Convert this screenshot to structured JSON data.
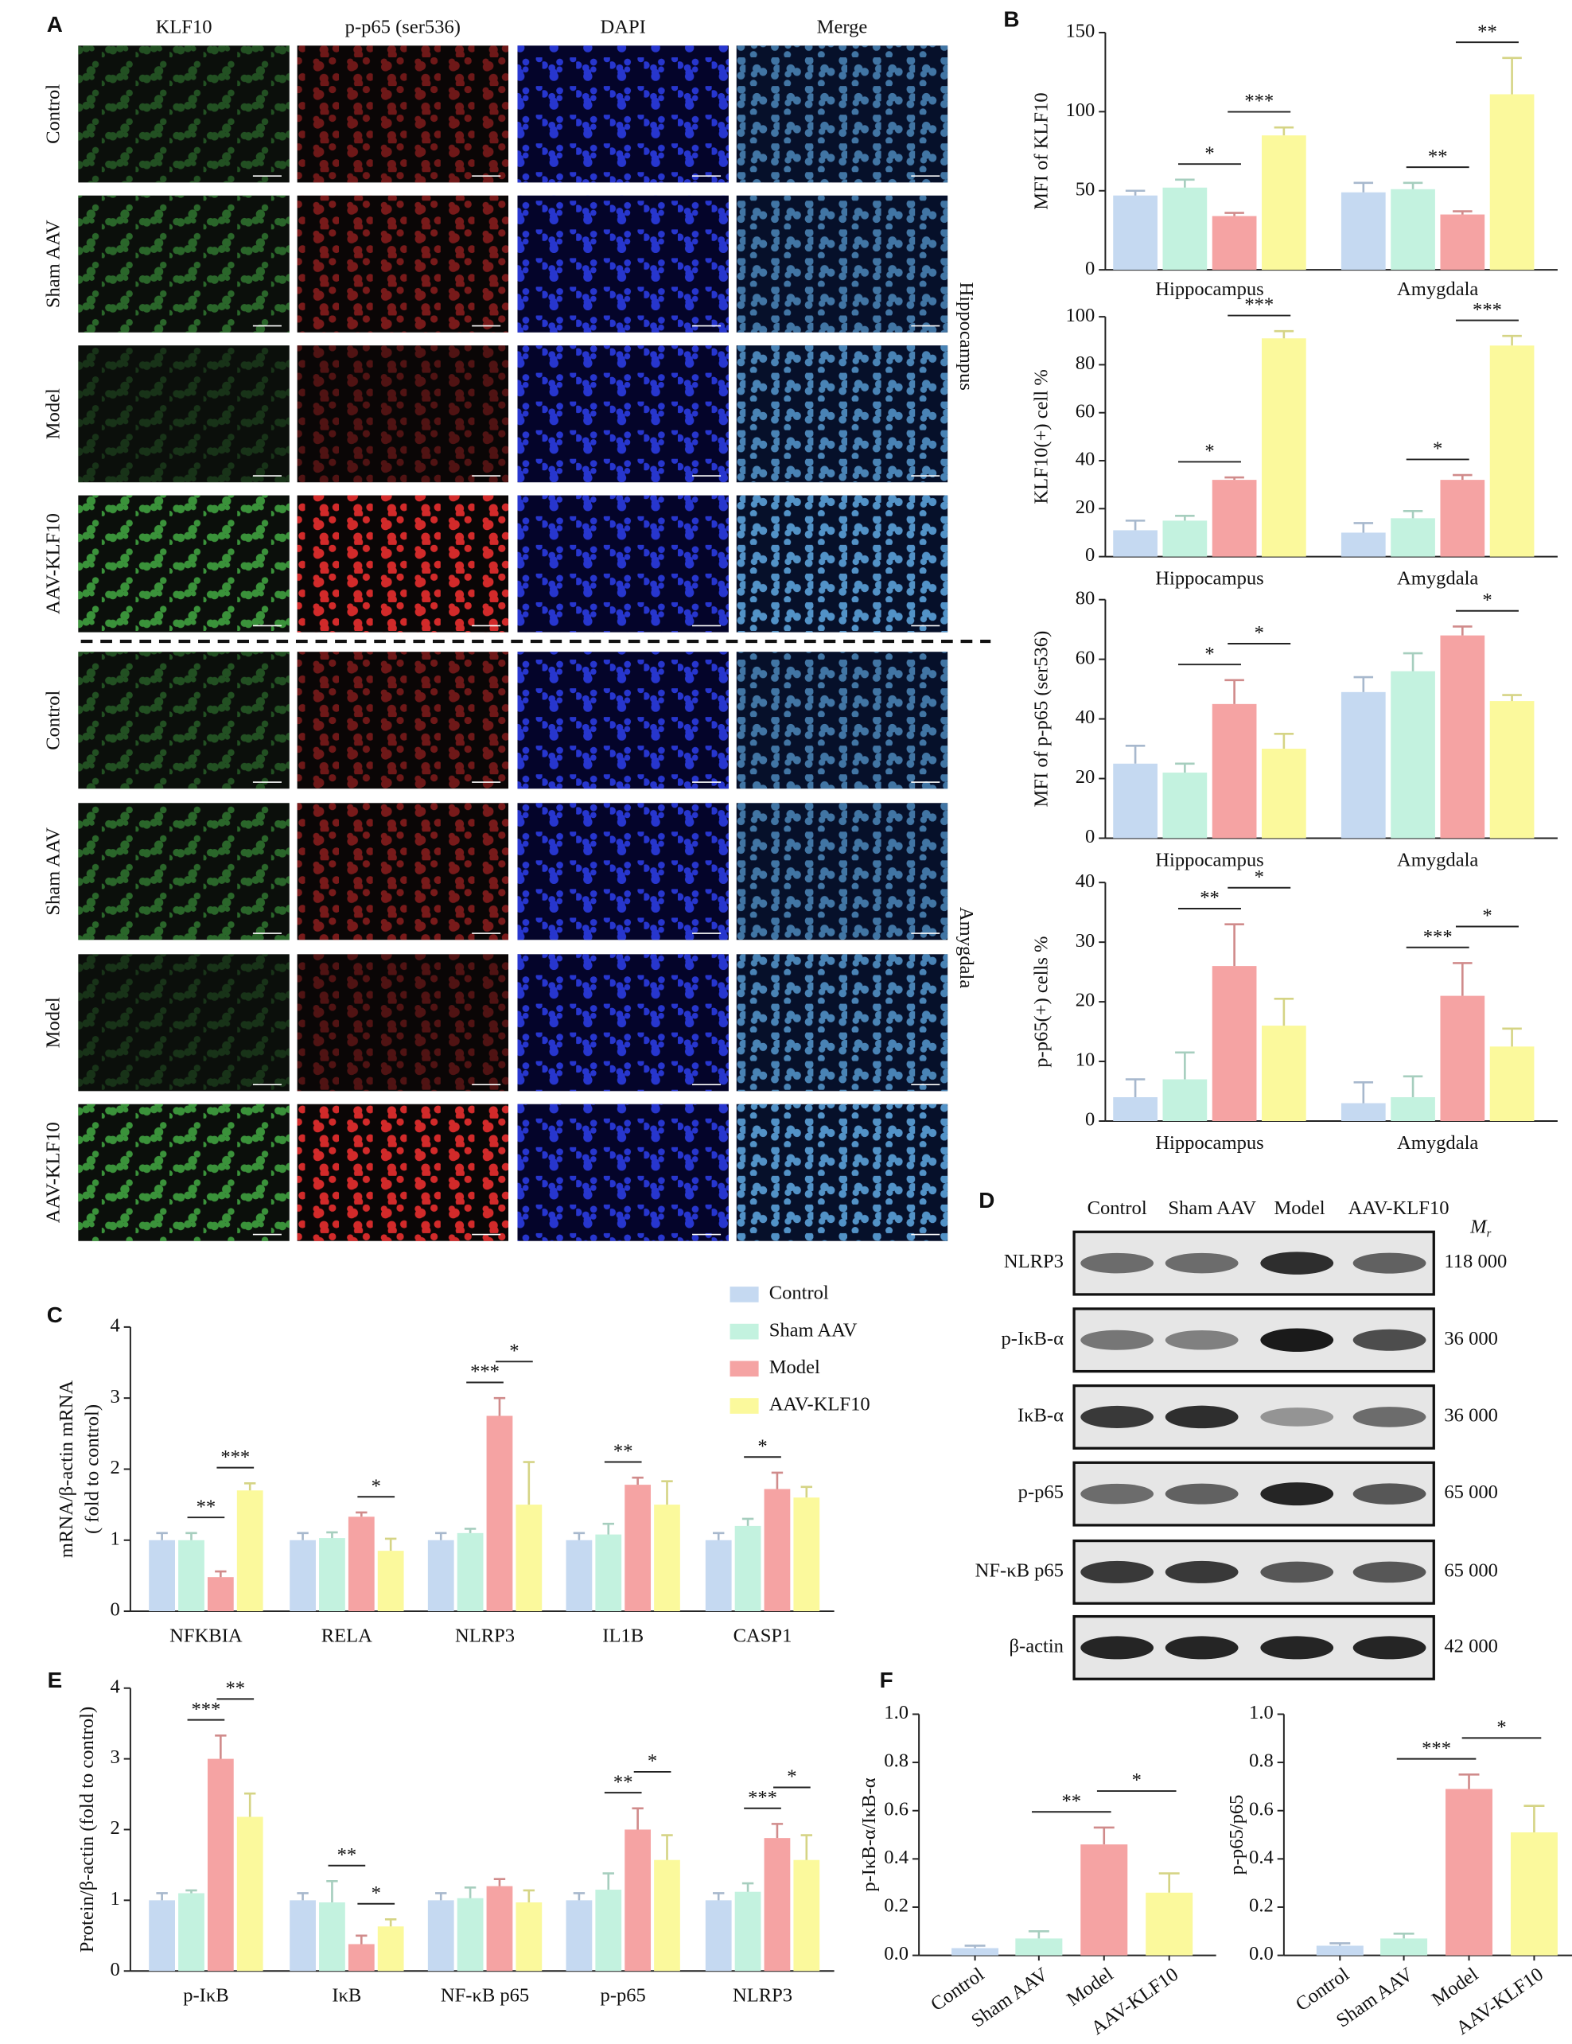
{
  "panels": [
    "A",
    "B",
    "C",
    "D",
    "E",
    "F"
  ],
  "panel_a": {
    "columns": [
      "KLF10",
      "p-p65 (ser536)",
      "DAPI",
      "Merge"
    ],
    "regions": [
      {
        "name": "Hippocampus",
        "rows": [
          "Control",
          "Sham AAV",
          "Model",
          "AAV-KLF10"
        ]
      },
      {
        "name": "Amygdala",
        "rows": [
          "Control",
          "Sham AAV",
          "Model",
          "AAV-KLF10"
        ]
      }
    ]
  },
  "panel_d": {
    "columns": [
      "Control",
      "Sham AAV",
      "Model",
      "AAV-KLF10"
    ],
    "mr": {
      "symbol": "M",
      "subscript": "r"
    },
    "rows": [
      {
        "name": "NLRP3",
        "mr": "118 000"
      },
      {
        "name": "p-IκB-α",
        "mr": "36 000"
      },
      {
        "name": "IκB-α",
        "mr": "36 000"
      },
      {
        "name": "p-p65",
        "mr": "65 000"
      },
      {
        "name": "NF-κB p65",
        "mr": "65 000"
      },
      {
        "name": "β-actin",
        "mr": "42 000"
      }
    ]
  },
  "chart_data": [
    {
      "type": "bar",
      "y_label": "MFI of KLF10",
      "categories": [
        "Hippocampus",
        "Amygdala"
      ],
      "series": [
        {
          "color": "#c5d9f1",
          "values": [
            47,
            49
          ],
          "errors": [
            3,
            6
          ]
        },
        {
          "color": "#c3f2df",
          "values": [
            52,
            51
          ],
          "errors": [
            5,
            4
          ]
        },
        {
          "color": "#f5a3a3",
          "values": [
            34,
            35
          ],
          "errors": [
            2,
            2
          ]
        },
        {
          "color": "#fbf99c",
          "values": [
            85,
            111
          ],
          "errors": [
            5,
            23
          ]
        }
      ],
      "ylim": [
        0,
        150
      ],
      "yticks": [
        0,
        50,
        100,
        150
      ],
      "annotations": [
        {
          "text": "*",
          "category": 0,
          "between": [
            1,
            2
          ]
        },
        {
          "text": "***",
          "category": 0,
          "between": [
            2,
            3
          ]
        },
        {
          "text": "**",
          "category": 1,
          "between": [
            1,
            2
          ]
        },
        {
          "text": "**",
          "category": 1,
          "between": [
            2,
            3
          ]
        }
      ]
    },
    {
      "type": "bar",
      "y_label": "KLF10(+) cell %",
      "categories": [
        "Hippocampus",
        "Amygdala"
      ],
      "series": [
        {
          "color": "#c5d9f1",
          "values": [
            11,
            10
          ],
          "errors": [
            4,
            4
          ]
        },
        {
          "color": "#c3f2df",
          "values": [
            15,
            16
          ],
          "errors": [
            2,
            3
          ]
        },
        {
          "color": "#f5a3a3",
          "values": [
            32,
            32
          ],
          "errors": [
            1,
            2
          ]
        },
        {
          "color": "#fbf99c",
          "values": [
            91,
            88
          ],
          "errors": [
            3,
            4
          ]
        }
      ],
      "ylim": [
        0,
        100
      ],
      "yticks": [
        0,
        20,
        40,
        60,
        80,
        100
      ],
      "annotations": [
        {
          "text": "*",
          "category": 0,
          "between": [
            1,
            2
          ]
        },
        {
          "text": "***",
          "category": 0,
          "between": [
            2,
            3
          ]
        },
        {
          "text": "*",
          "category": 1,
          "between": [
            1,
            2
          ]
        },
        {
          "text": "***",
          "category": 1,
          "between": [
            2,
            3
          ]
        }
      ]
    },
    {
      "type": "bar",
      "y_label": "MFI of p-p65 (ser536)",
      "categories": [
        "Hippocampus",
        "Amygdala"
      ],
      "series": [
        {
          "color": "#c5d9f1",
          "values": [
            25,
            49
          ],
          "errors": [
            6,
            5
          ]
        },
        {
          "color": "#c3f2df",
          "values": [
            22,
            56
          ],
          "errors": [
            3,
            6
          ]
        },
        {
          "color": "#f5a3a3",
          "values": [
            45,
            68
          ],
          "errors": [
            8,
            3
          ]
        },
        {
          "color": "#fbf99c",
          "values": [
            30,
            46
          ],
          "errors": [
            5,
            2
          ]
        }
      ],
      "ylim": [
        0,
        80
      ],
      "yticks": [
        0,
        20,
        40,
        60,
        80
      ],
      "annotations": [
        {
          "text": "*",
          "category": 0,
          "between": [
            1,
            2
          ]
        },
        {
          "text": "*",
          "category": 0,
          "between": [
            2,
            3
          ]
        },
        {
          "text": "*",
          "category": 1,
          "between": [
            2,
            3
          ]
        }
      ]
    },
    {
      "type": "bar",
      "y_label": "p-p65(+) cells %",
      "categories": [
        "Hippocampus",
        "Amygdala"
      ],
      "series": [
        {
          "color": "#c5d9f1",
          "values": [
            4,
            3
          ],
          "errors": [
            3,
            3.5
          ]
        },
        {
          "color": "#c3f2df",
          "values": [
            7,
            4
          ],
          "errors": [
            4.5,
            3.5
          ]
        },
        {
          "color": "#f5a3a3",
          "values": [
            26,
            21
          ],
          "errors": [
            7,
            5.5
          ]
        },
        {
          "color": "#fbf99c",
          "values": [
            16,
            12.5
          ],
          "errors": [
            4.5,
            3
          ]
        }
      ],
      "ylim": [
        0,
        40
      ],
      "yticks": [
        0,
        10,
        20,
        30,
        40
      ],
      "annotations": [
        {
          "text": "**",
          "category": 0,
          "between": [
            1,
            2
          ]
        },
        {
          "text": "*",
          "category": 0,
          "between": [
            2,
            3
          ]
        },
        {
          "text": "***",
          "category": 1,
          "between": [
            1,
            2
          ]
        },
        {
          "text": "*",
          "category": 1,
          "between": [
            2,
            3
          ]
        }
      ]
    },
    {
      "type": "bar",
      "y_label": [
        "mRNA/β-actin mRNA",
        "( fold to control)"
      ],
      "categories": [
        "NFKBIA",
        "RELA",
        "NLRP3",
        "IL1B",
        "CASP1"
      ],
      "legend": "top-right",
      "series": [
        {
          "name": "Control",
          "color": "#c5d9f1",
          "values": [
            1,
            1,
            1,
            1,
            1
          ],
          "errors": [
            0.1,
            0.1,
            0.1,
            0.1,
            0.1
          ]
        },
        {
          "name": "Sham AAV",
          "color": "#c3f2df",
          "values": [
            1,
            1.03,
            1.1,
            1.08,
            1.2
          ],
          "errors": [
            0.1,
            0.08,
            0.06,
            0.15,
            0.1
          ]
        },
        {
          "name": "Model",
          "color": "#f5a3a3",
          "values": [
            0.48,
            1.33,
            2.75,
            1.78,
            1.72
          ],
          "errors": [
            0.08,
            0.06,
            0.25,
            0.1,
            0.23
          ]
        },
        {
          "name": "AAV-KLF10",
          "color": "#fbf99c",
          "values": [
            1.7,
            0.85,
            1.5,
            1.5,
            1.6
          ],
          "errors": [
            0.1,
            0.17,
            0.6,
            0.33,
            0.15
          ]
        }
      ],
      "ylim": [
        0,
        4
      ],
      "yticks": [
        0,
        1,
        2,
        3,
        4
      ],
      "annotations": [
        {
          "text": "**",
          "category": 0,
          "between": [
            1,
            2
          ]
        },
        {
          "text": "***",
          "category": 0,
          "between": [
            2,
            3
          ]
        },
        {
          "text": "*",
          "category": 1,
          "between": [
            2,
            3
          ]
        },
        {
          "text": "***",
          "category": 2,
          "between": [
            1,
            2
          ]
        },
        {
          "text": "*",
          "category": 2,
          "between": [
            2,
            3
          ]
        },
        {
          "text": "**",
          "category": 3,
          "between": [
            1,
            2
          ]
        },
        {
          "text": "*",
          "category": 4,
          "between": [
            1,
            2
          ]
        }
      ]
    },
    {
      "type": "bar",
      "y_label": "Protein/β-actin (fold to control)",
      "categories": [
        "p-IκB",
        "IκB",
        "NF-κB p65",
        "p-p65",
        "NLRP3"
      ],
      "series": [
        {
          "color": "#c5d9f1",
          "values": [
            1,
            1,
            1,
            1,
            1
          ],
          "errors": [
            0.1,
            0.1,
            0.1,
            0.1,
            0.1
          ]
        },
        {
          "color": "#c3f2df",
          "values": [
            1.1,
            0.97,
            1.03,
            1.15,
            1.12
          ],
          "errors": [
            0.04,
            0.3,
            0.15,
            0.23,
            0.12
          ]
        },
        {
          "color": "#f5a3a3",
          "values": [
            3,
            0.38,
            1.2,
            2,
            1.88
          ],
          "errors": [
            0.33,
            0.12,
            0.1,
            0.3,
            0.2
          ]
        },
        {
          "color": "#fbf99c",
          "values": [
            2.18,
            0.63,
            0.97,
            1.57,
            1.57
          ],
          "errors": [
            0.33,
            0.1,
            0.17,
            0.35,
            0.35
          ]
        }
      ],
      "ylim": [
        0,
        4
      ],
      "yticks": [
        0,
        1,
        2,
        3,
        4
      ],
      "annotations": [
        {
          "text": "***",
          "category": 0,
          "between": [
            1,
            2
          ]
        },
        {
          "text": "**",
          "category": 0,
          "between": [
            2,
            3
          ]
        },
        {
          "text": "**",
          "category": 1,
          "between": [
            1,
            2
          ]
        },
        {
          "text": "*",
          "category": 1,
          "between": [
            2,
            3
          ]
        },
        {
          "text": "**",
          "category": 3,
          "between": [
            1,
            2
          ]
        },
        {
          "text": "*",
          "category": 3,
          "between": [
            2,
            3
          ]
        },
        {
          "text": "***",
          "category": 4,
          "between": [
            1,
            2
          ]
        },
        {
          "text": "*",
          "category": 4,
          "between": [
            2,
            3
          ]
        }
      ]
    },
    {
      "type": "bar",
      "y_label": "p-IκB-α/IκB-α",
      "categories": [
        "Control",
        "Sham AAV",
        "Model",
        "AAV-KLF10"
      ],
      "colors": [
        "#c5d9f1",
        "#c3f2df",
        "#f5a3a3",
        "#fbf99c"
      ],
      "values": [
        0.03,
        0.07,
        0.46,
        0.26
      ],
      "errors": [
        0.01,
        0.03,
        0.07,
        0.08
      ],
      "ylim": [
        0,
        1
      ],
      "yticks": [
        {
          "value": 0,
          "label": "0.0"
        },
        0.2,
        0.4,
        0.6,
        0.8,
        {
          "value": 1,
          "label": "1.0"
        }
      ],
      "annotations": [
        {
          "text": "**",
          "between": [
            1,
            2
          ]
        },
        {
          "text": "*",
          "between": [
            2,
            3
          ]
        }
      ]
    },
    {
      "type": "bar",
      "y_label": "p-p65/p65",
      "categories": [
        "Control",
        "Sham AAV",
        "Model",
        "AAV-KLF10"
      ],
      "colors": [
        "#c5d9f1",
        "#c3f2df",
        "#f5a3a3",
        "#fbf99c"
      ],
      "values": [
        0.04,
        0.07,
        0.69,
        0.51
      ],
      "errors": [
        0.01,
        0.02,
        0.06,
        0.11
      ],
      "ylim": [
        0,
        1
      ],
      "yticks": [
        {
          "value": 0,
          "label": "0.0"
        },
        0.2,
        0.4,
        0.6,
        0.8,
        {
          "value": 1,
          "label": "1.0"
        }
      ],
      "annotations": [
        {
          "text": "***",
          "between": [
            1,
            2
          ]
        },
        {
          "text": "*",
          "between": [
            2,
            3
          ]
        }
      ]
    }
  ]
}
